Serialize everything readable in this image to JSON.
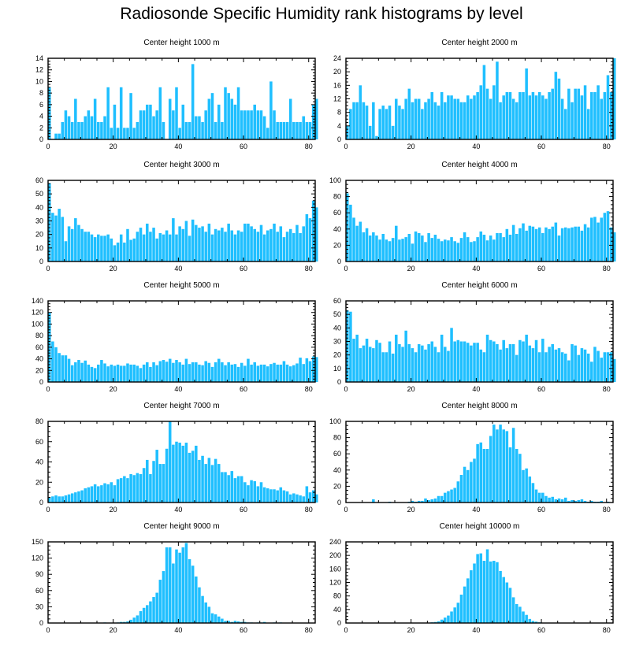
{
  "title": "Radiosonde Specific Humidity rank histograms by level",
  "colors": {
    "bar": "#1fbfff",
    "axis": "#000000"
  },
  "chart_data": [
    {
      "type": "bar",
      "title": "Center height 1000 m",
      "xlim": [
        0,
        82
      ],
      "ylim": [
        0,
        14
      ],
      "yticks": [
        0,
        2,
        4,
        6,
        8,
        10,
        12,
        14
      ],
      "xticks": [
        0,
        20,
        40,
        60,
        80
      ],
      "values": [
        9,
        0,
        1,
        1,
        3,
        5,
        4,
        3,
        7,
        3,
        3,
        4,
        5,
        4,
        7,
        3,
        3,
        4,
        9,
        2,
        6,
        2,
        9,
        2,
        2,
        8,
        2,
        3,
        5,
        5,
        6,
        6,
        4,
        5,
        9,
        3,
        0,
        7,
        5,
        9,
        2,
        6,
        3,
        3,
        13,
        4,
        4,
        3,
        5,
        7,
        8,
        3,
        6,
        3,
        9,
        8,
        7,
        6,
        9,
        5,
        5,
        5,
        5,
        6,
        5,
        5,
        4,
        2,
        10,
        5,
        3,
        3,
        3,
        3,
        7,
        3,
        3,
        3,
        4,
        3,
        3,
        6,
        7
      ]
    },
    {
      "type": "bar",
      "title": "Center height 2000 m",
      "xlim": [
        0,
        82
      ],
      "ylim": [
        0,
        24
      ],
      "yticks": [
        0,
        4,
        8,
        12,
        16,
        20,
        24
      ],
      "xticks": [
        0,
        20,
        40,
        60,
        80
      ],
      "values": [
        4,
        9,
        11,
        11,
        16,
        11,
        10,
        4,
        11,
        1,
        9,
        10,
        9,
        10,
        4,
        12,
        10,
        9,
        12,
        15,
        11,
        12,
        12,
        9,
        11,
        12,
        14,
        11,
        10,
        14,
        11,
        13,
        13,
        12,
        12,
        11,
        11,
        13,
        12,
        13,
        14,
        16,
        22,
        15,
        12,
        16,
        23,
        11,
        13,
        14,
        14,
        12,
        11,
        14,
        14,
        21,
        13,
        14,
        13,
        14,
        13,
        12,
        14,
        15,
        20,
        18,
        12,
        9,
        15,
        11,
        15,
        15,
        13,
        16,
        9,
        14,
        14,
        16,
        12,
        14,
        19,
        14,
        24
      ]
    },
    {
      "type": "bar",
      "title": "Center height 3000 m",
      "xlim": [
        0,
        82
      ],
      "ylim": [
        0,
        60
      ],
      "yticks": [
        0,
        10,
        20,
        30,
        40,
        50,
        60
      ],
      "xticks": [
        0,
        20,
        40,
        60,
        80
      ],
      "values": [
        58,
        36,
        34,
        39,
        33,
        15,
        26,
        24,
        32,
        27,
        24,
        22,
        22,
        20,
        18,
        20,
        19,
        19,
        20,
        17,
        12,
        14,
        20,
        14,
        24,
        16,
        17,
        22,
        25,
        20,
        28,
        22,
        25,
        17,
        21,
        20,
        23,
        20,
        32,
        20,
        26,
        24,
        30,
        19,
        31,
        27,
        25,
        26,
        22,
        28,
        20,
        24,
        23,
        25,
        22,
        28,
        23,
        20,
        23,
        22,
        28,
        28,
        26,
        24,
        22,
        27,
        20,
        23,
        24,
        28,
        22,
        26,
        18,
        22,
        24,
        21,
        27,
        21,
        26,
        35,
        32,
        45,
        40
      ]
    },
    {
      "type": "bar",
      "title": "Center height 4000 m",
      "xlim": [
        0,
        82
      ],
      "ylim": [
        0,
        100
      ],
      "yticks": [
        0,
        20,
        40,
        60,
        80,
        100
      ],
      "xticks": [
        0,
        20,
        40,
        60,
        80
      ],
      "values": [
        84,
        70,
        54,
        44,
        49,
        36,
        41,
        32,
        36,
        32,
        27,
        34,
        27,
        25,
        29,
        44,
        27,
        28,
        30,
        34,
        22,
        37,
        35,
        32,
        24,
        35,
        29,
        33,
        28,
        25,
        27,
        26,
        30,
        25,
        23,
        29,
        36,
        30,
        24,
        25,
        30,
        37,
        33,
        26,
        32,
        27,
        35,
        35,
        30,
        40,
        33,
        45,
        34,
        41,
        47,
        38,
        44,
        43,
        40,
        42,
        35,
        42,
        40,
        43,
        48,
        32,
        41,
        42,
        41,
        42,
        43,
        43,
        38,
        46,
        42,
        54,
        55,
        48,
        54,
        60,
        62,
        42,
        36
      ]
    },
    {
      "type": "bar",
      "title": "Center height 5000 m",
      "xlim": [
        0,
        82
      ],
      "ylim": [
        0,
        140
      ],
      "yticks": [
        0,
        20,
        40,
        60,
        80,
        100,
        120,
        140
      ],
      "xticks": [
        0,
        20,
        40,
        60,
        80
      ],
      "values": [
        120,
        70,
        60,
        50,
        46,
        46,
        40,
        29,
        34,
        38,
        33,
        37,
        30,
        26,
        24,
        30,
        38,
        32,
        27,
        30,
        28,
        30,
        28,
        28,
        32,
        30,
        30,
        28,
        24,
        30,
        34,
        26,
        34,
        29,
        36,
        38,
        35,
        40,
        33,
        38,
        34,
        30,
        40,
        31,
        34,
        34,
        30,
        29,
        36,
        33,
        26,
        34,
        40,
        34,
        29,
        34,
        30,
        31,
        26,
        33,
        28,
        40,
        30,
        34,
        28,
        30,
        30,
        27,
        31,
        33,
        30,
        30,
        36,
        30,
        27,
        29,
        32,
        42,
        31,
        41,
        36,
        44,
        43
      ]
    },
    {
      "type": "bar",
      "title": "Center height 6000 m",
      "xlim": [
        0,
        82
      ],
      "ylim": [
        0,
        60
      ],
      "yticks": [
        0,
        10,
        20,
        30,
        40,
        50,
        60
      ],
      "xticks": [
        0,
        20,
        40,
        60,
        80
      ],
      "values": [
        53,
        52,
        32,
        35,
        25,
        27,
        32,
        26,
        25,
        31,
        29,
        22,
        22,
        30,
        21,
        35,
        28,
        26,
        38,
        28,
        25,
        22,
        28,
        27,
        24,
        28,
        30,
        26,
        22,
        35,
        26,
        23,
        40,
        30,
        31,
        30,
        30,
        29,
        27,
        29,
        29,
        24,
        22,
        35,
        31,
        30,
        28,
        24,
        31,
        25,
        28,
        28,
        20,
        31,
        30,
        35,
        27,
        25,
        31,
        22,
        32,
        22,
        26,
        28,
        24,
        25,
        22,
        21,
        16,
        28,
        27,
        20,
        25,
        24,
        21,
        15,
        26,
        23,
        18,
        22,
        22,
        22,
        17
      ]
    },
    {
      "type": "bar",
      "title": "Center height 7000 m",
      "xlim": [
        0,
        82
      ],
      "ylim": [
        0,
        80
      ],
      "yticks": [
        0,
        20,
        40,
        60,
        80
      ],
      "xticks": [
        0,
        20,
        40,
        60,
        80
      ],
      "values": [
        5,
        6,
        7,
        6,
        6,
        7,
        8,
        9,
        10,
        11,
        12,
        14,
        15,
        16,
        18,
        16,
        17,
        19,
        18,
        20,
        17,
        23,
        24,
        26,
        24,
        28,
        27,
        29,
        28,
        34,
        42,
        28,
        41,
        52,
        38,
        38,
        53,
        80,
        57,
        60,
        59,
        56,
        59,
        49,
        51,
        56,
        42,
        46,
        38,
        44,
        37,
        43,
        38,
        30,
        30,
        27,
        31,
        24,
        26,
        26,
        20,
        17,
        22,
        21,
        16,
        20,
        15,
        14,
        13,
        13,
        12,
        15,
        12,
        11,
        8,
        9,
        8,
        7,
        6,
        16,
        10,
        12,
        8
      ]
    },
    {
      "type": "bar",
      "title": "Center height 8000 m",
      "xlim": [
        0,
        82
      ],
      "ylim": [
        0,
        100
      ],
      "yticks": [
        0,
        20,
        40,
        60,
        80,
        100
      ],
      "xticks": [
        0,
        20,
        40,
        60,
        80
      ],
      "values": [
        0,
        0,
        0,
        0,
        0,
        0,
        0,
        0,
        4,
        0,
        0,
        0,
        0,
        1,
        0,
        0,
        0,
        0,
        0,
        1,
        2,
        1,
        2,
        2,
        5,
        3,
        4,
        5,
        8,
        8,
        12,
        14,
        16,
        18,
        26,
        34,
        44,
        40,
        50,
        54,
        72,
        74,
        66,
        66,
        82,
        96,
        90,
        96,
        90,
        88,
        68,
        92,
        66,
        60,
        40,
        42,
        32,
        24,
        16,
        12,
        12,
        8,
        6,
        7,
        4,
        5,
        4,
        6,
        2,
        3,
        2,
        3,
        4,
        2,
        1,
        2,
        1,
        1,
        2,
        0,
        1,
        0,
        0
      ]
    },
    {
      "type": "bar",
      "title": "Center height 9000 m",
      "xlim": [
        0,
        82
      ],
      "ylim": [
        0,
        150
      ],
      "yticks": [
        0,
        30,
        60,
        90,
        120,
        150
      ],
      "xticks": [
        0,
        20,
        40,
        60,
        80
      ],
      "values": [
        0,
        0,
        0,
        0,
        0,
        0,
        0,
        0,
        0,
        0,
        0,
        0,
        0,
        0,
        0,
        0,
        0,
        1,
        0,
        0,
        0,
        1,
        2,
        2,
        3,
        6,
        10,
        14,
        22,
        28,
        33,
        40,
        48,
        56,
        80,
        96,
        140,
        140,
        110,
        136,
        130,
        140,
        148,
        118,
        106,
        86,
        66,
        50,
        38,
        30,
        18,
        16,
        12,
        8,
        4,
        4,
        2,
        4,
        3,
        2,
        2,
        1,
        1,
        0,
        1,
        1,
        2,
        0,
        0,
        1,
        0,
        1,
        0,
        0,
        0,
        0,
        0,
        0,
        0,
        0,
        0,
        0,
        0
      ]
    },
    {
      "type": "bar",
      "title": "Center height 10000 m",
      "xlim": [
        0,
        82
      ],
      "ylim": [
        0,
        240
      ],
      "yticks": [
        0,
        40,
        80,
        120,
        160,
        200,
        240
      ],
      "xticks": [
        0,
        20,
        40,
        60,
        80
      ],
      "values": [
        0,
        0,
        0,
        0,
        0,
        0,
        0,
        0,
        0,
        0,
        0,
        0,
        0,
        0,
        0,
        0,
        0,
        0,
        0,
        0,
        0,
        0,
        0,
        0,
        1,
        1,
        2,
        3,
        5,
        10,
        16,
        22,
        34,
        46,
        60,
        84,
        108,
        132,
        156,
        176,
        204,
        206,
        184,
        218,
        182,
        184,
        180,
        154,
        136,
        120,
        104,
        76,
        56,
        48,
        34,
        24,
        12,
        6,
        4,
        2,
        1,
        1,
        0,
        0,
        0,
        0,
        0,
        0,
        0,
        0,
        0,
        0,
        0,
        0,
        0,
        0,
        0,
        0,
        0,
        0,
        0,
        0,
        0
      ]
    }
  ]
}
